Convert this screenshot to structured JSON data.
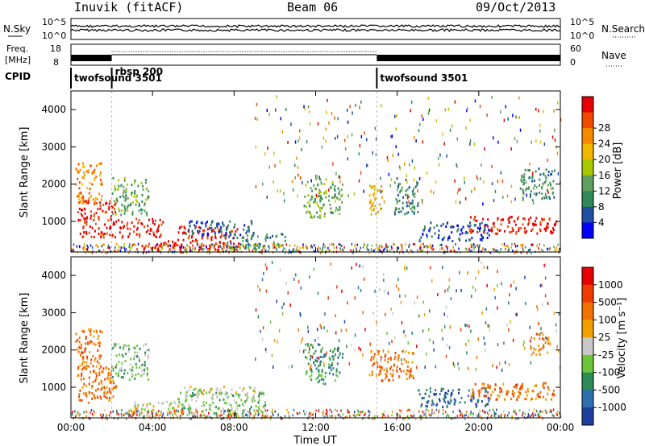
{
  "header": {
    "station": "Inuvik (fitACF)",
    "beam": "Beam 06",
    "date": "09/Oct/2013"
  },
  "summary_panels": {
    "nsky": {
      "label": "N.Sky",
      "ticks_left": [
        "10^5",
        "10^0"
      ],
      "ticks_right": [
        "10^5",
        "10^0"
      ],
      "right_label": "N.Search",
      "right_label_style": "dotted"
    },
    "freq": {
      "label_line1": "Freq.",
      "label_line2": "[MHz]",
      "ticks_left": [
        "18",
        "8"
      ],
      "ticks_right": [
        "60",
        "0"
      ],
      "right_label": "Nave",
      "right_label_style": "dotted"
    },
    "cpid": {
      "label": "CPID",
      "programs": [
        {
          "name": "twofsound 3501",
          "start": 0.0,
          "end": 2.0
        },
        {
          "name": "rbsp 200",
          "start": 2.0,
          "end": 15.0
        },
        {
          "name": "twofsound 3501",
          "start": 15.0,
          "end": 24.0
        }
      ]
    }
  },
  "chart_data": [
    {
      "type": "heatmap",
      "name": "power",
      "ylabel": "Slant Range [km]",
      "ylim": [
        180,
        4500
      ],
      "yticks": [
        "1000",
        "2000",
        "3000",
        "4000"
      ],
      "xlim": [
        0,
        24
      ],
      "colorbar": {
        "label": "Power [dB]",
        "ticks": [
          "4",
          "8",
          "12",
          "16",
          "20",
          "24",
          "28"
        ],
        "colors": [
          "#0000ff",
          "#1f4fa0",
          "#2e8b57",
          "#5fa05f",
          "#a8c800",
          "#f2b800",
          "#f58a00",
          "#f04a00",
          "#e60000"
        ]
      },
      "regions": [
        {
          "t0": 0.3,
          "t1": 2.2,
          "r0": 600,
          "r1": 1600,
          "level": 8
        },
        {
          "t0": 0.2,
          "t1": 1.5,
          "r0": 1500,
          "r1": 2600,
          "level": 6
        },
        {
          "t0": 2.0,
          "t1": 3.8,
          "r0": 1200,
          "r1": 2200,
          "level": 3
        },
        {
          "t0": 2.3,
          "t1": 4.5,
          "r0": 600,
          "r1": 1100,
          "level": 8
        },
        {
          "t0": 3.2,
          "t1": 5.5,
          "r0": 250,
          "r1": 500,
          "level": 8
        },
        {
          "t0": 5.2,
          "t1": 8.2,
          "r0": 250,
          "r1": 900,
          "level": 8
        },
        {
          "t0": 5.5,
          "t1": 9.0,
          "r0": 650,
          "r1": 1050,
          "level": 1
        },
        {
          "t0": 7.5,
          "t1": 10.5,
          "r0": 300,
          "r1": 700,
          "level": 2
        },
        {
          "t0": 11.4,
          "t1": 12.5,
          "r0": 1100,
          "r1": 2200,
          "level": 3
        },
        {
          "t0": 12.6,
          "t1": 13.3,
          "r0": 1200,
          "r1": 2100,
          "level": 3
        },
        {
          "t0": 14.6,
          "t1": 15.3,
          "r0": 1200,
          "r1": 2000,
          "level": 5
        },
        {
          "t0": 15.8,
          "t1": 17.0,
          "r0": 1200,
          "r1": 2200,
          "level": 2
        },
        {
          "t0": 17.0,
          "t1": 20.5,
          "r0": 500,
          "r1": 1000,
          "level": 1
        },
        {
          "t0": 19.5,
          "t1": 23.8,
          "r0": 700,
          "r1": 1150,
          "level": 8
        },
        {
          "t0": 22.0,
          "t1": 23.7,
          "r0": 1600,
          "r1": 2500,
          "level": 2
        }
      ]
    },
    {
      "type": "heatmap",
      "name": "velocity",
      "ylabel": "Slant Range [km]",
      "ylim": [
        180,
        4500
      ],
      "yticks": [
        "1000",
        "2000",
        "3000",
        "4000"
      ],
      "xlim": [
        0,
        24
      ],
      "xticks": [
        "00:00",
        "04:00",
        "08:00",
        "12:00",
        "16:00",
        "20:00",
        "00:00"
      ],
      "xlabel": "Time UT",
      "colorbar": {
        "label": "Velocity [m s⁻¹]",
        "ticks": [
          "1000",
          "500",
          "100",
          "25",
          "-25",
          "-100",
          "-500",
          "-1000"
        ],
        "colors": [
          "#1f3fa0",
          "#2e6fb0",
          "#2e8b57",
          "#6cc63c",
          "#c8c8c8",
          "#f2a000",
          "#f07000",
          "#f03c00",
          "#e60000"
        ]
      },
      "regions": [
        {
          "t0": 0.3,
          "t1": 2.2,
          "r0": 600,
          "r1": 1600,
          "level": 6
        },
        {
          "t0": 0.2,
          "t1": 1.5,
          "r0": 1500,
          "r1": 2600,
          "level": 6
        },
        {
          "t0": 2.0,
          "t1": 3.8,
          "r0": 1200,
          "r1": 2200,
          "level": 3
        },
        {
          "t0": 3.0,
          "t1": 5.5,
          "r0": 250,
          "r1": 650,
          "level": 4
        },
        {
          "t0": 5.2,
          "t1": 9.5,
          "r0": 250,
          "r1": 900,
          "level": 3
        },
        {
          "t0": 5.5,
          "t1": 9.0,
          "r0": 750,
          "r1": 1050,
          "level": 4
        },
        {
          "t0": 11.4,
          "t1": 12.5,
          "r0": 1100,
          "r1": 2200,
          "level": 2
        },
        {
          "t0": 12.6,
          "t1": 13.3,
          "r0": 1200,
          "r1": 2100,
          "level": 2
        },
        {
          "t0": 14.6,
          "t1": 16.8,
          "r0": 1200,
          "r1": 2000,
          "level": 6
        },
        {
          "t0": 17.0,
          "t1": 20.5,
          "r0": 500,
          "r1": 1000,
          "level": 1
        },
        {
          "t0": 19.5,
          "t1": 23.8,
          "r0": 700,
          "r1": 1150,
          "level": 6
        },
        {
          "t0": 22.5,
          "t1": 23.5,
          "r0": 1900,
          "r1": 2500,
          "level": 6
        }
      ]
    }
  ]
}
